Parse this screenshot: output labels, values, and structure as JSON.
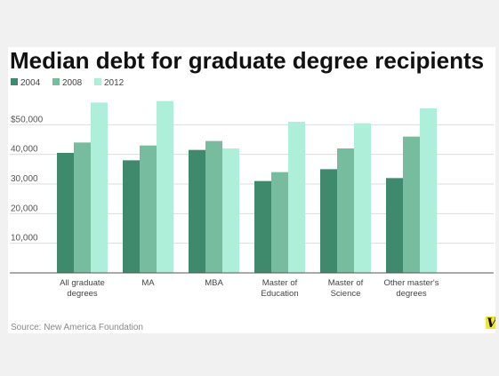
{
  "chart_data": {
    "type": "bar",
    "title": "Median debt for graduate degree recipients",
    "categories": [
      [
        "All graduate",
        "degrees"
      ],
      [
        "MA"
      ],
      [
        "MBA"
      ],
      [
        "Master of",
        "Education"
      ],
      [
        "Master of",
        "Science"
      ],
      [
        "Other master's",
        "degrees"
      ]
    ],
    "series": [
      {
        "name": "2004",
        "color": "#3f8a6d",
        "values": [
          40500,
          38000,
          41500,
          31000,
          35000,
          32000
        ]
      },
      {
        "name": "2008",
        "color": "#77bc9f",
        "values": [
          44000,
          43000,
          44500,
          34000,
          42000,
          46000
        ]
      },
      {
        "name": "2012",
        "color": "#aeefd9",
        "values": [
          57500,
          58000,
          42000,
          51000,
          50500,
          55500
        ]
      }
    ],
    "yticks": [
      {
        "value": 10000,
        "label": "10,000"
      },
      {
        "value": 20000,
        "label": "20,000"
      },
      {
        "value": 30000,
        "label": "30,000"
      },
      {
        "value": 40000,
        "label": "40,000"
      },
      {
        "value": 50000,
        "label": "$50,000"
      }
    ],
    "ylim": [
      0,
      60000
    ],
    "grid": true,
    "legend_position": "top-left",
    "source": "Source: New America Foundation",
    "logo": "V",
    "xlabel": "",
    "ylabel": ""
  }
}
